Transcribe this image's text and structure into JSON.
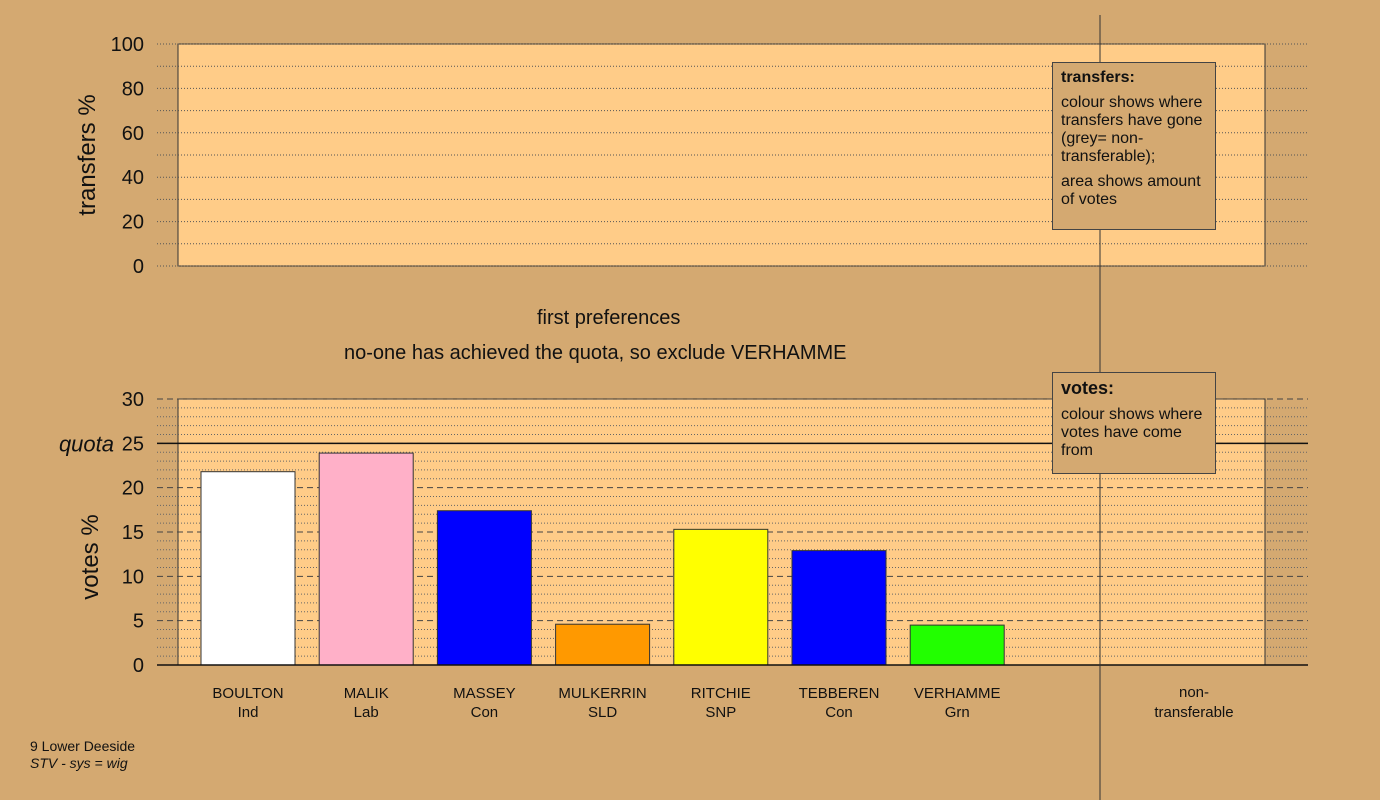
{
  "stage": {
    "title": "first preferences",
    "note": "no-one has achieved the quota, so exclude VERHAMME"
  },
  "legends": {
    "transfers": {
      "title": "transfers:",
      "line1": "colour shows where transfers have gone (grey= non-transferable);",
      "line2": "area shows amount of votes"
    },
    "votes": {
      "title": "votes:",
      "line1": "colour shows where votes have come from"
    }
  },
  "footer": {
    "ward": "9 Lower Deeside",
    "system": "STV - sys = wig"
  },
  "chart_data": [
    {
      "type": "bar",
      "panel": "transfers",
      "ylabel": "transfers %",
      "ylim": [
        0,
        100
      ],
      "yticks": [
        "0",
        "20",
        "40",
        "60",
        "80",
        "100"
      ],
      "series": []
    },
    {
      "type": "bar",
      "panel": "votes",
      "ylabel": "votes %",
      "ylim": [
        0,
        30
      ],
      "yticks": [
        "0",
        "5",
        "10",
        "15",
        "20",
        "25",
        "30"
      ],
      "quota": 25,
      "quota_label": "quota",
      "categories": [
        {
          "name": "BOULTON",
          "party": "Ind"
        },
        {
          "name": "MALIK",
          "party": "Lab"
        },
        {
          "name": "MASSEY",
          "party": "Con"
        },
        {
          "name": "MULKERRIN",
          "party": "SLD"
        },
        {
          "name": "RITCHIE",
          "party": "SNP"
        },
        {
          "name": "TEBBEREN",
          "party": "Con"
        },
        {
          "name": "VERHAMME",
          "party": "Grn"
        }
      ],
      "values": [
        21.8,
        23.9,
        17.4,
        4.6,
        15.3,
        12.9,
        4.5
      ],
      "colors": [
        "#ffffff",
        "#ffb0c8",
        "#0000ff",
        "#ff9900",
        "#ffff00",
        "#0000ff",
        "#22ff00"
      ],
      "nontransferable_label": "non-transferable"
    }
  ]
}
